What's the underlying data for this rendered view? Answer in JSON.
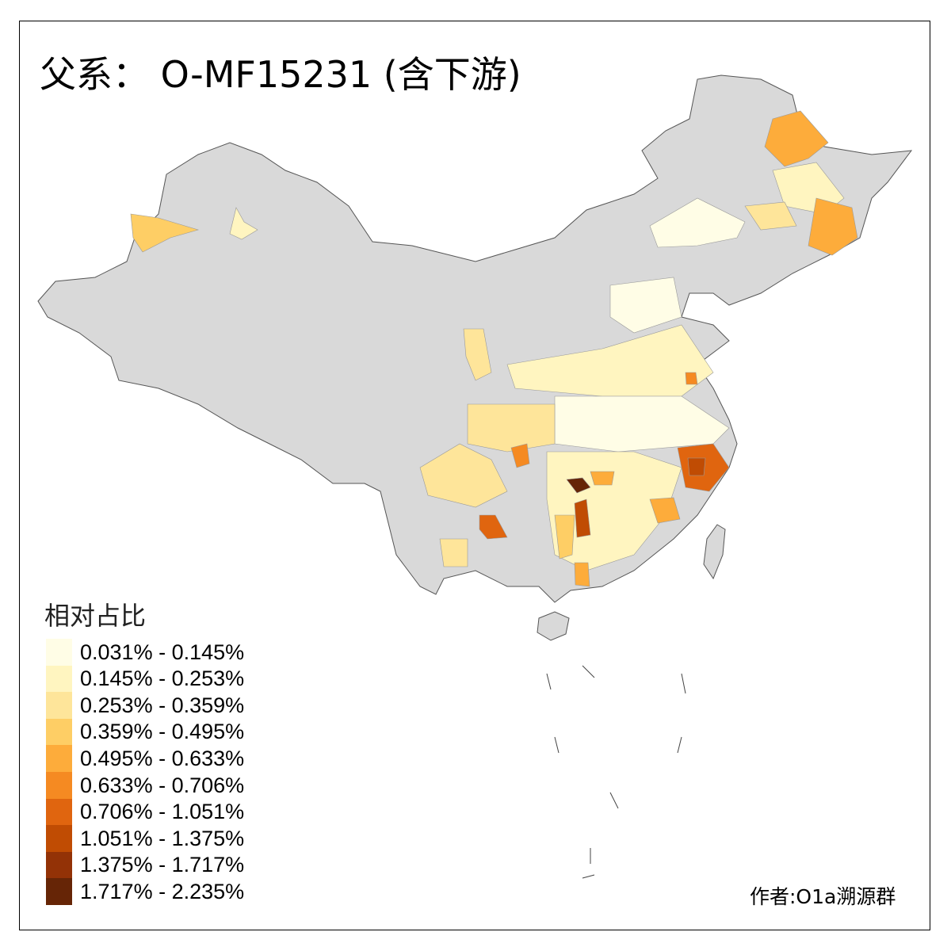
{
  "title": "父系： O-MF15231 (含下游)",
  "legend": {
    "title": "相对占比",
    "items": [
      {
        "label": "0.031% - 0.145%",
        "color": "#FFFDE6"
      },
      {
        "label": "0.145% - 0.253%",
        "color": "#FFF5C0"
      },
      {
        "label": "0.253% - 0.359%",
        "color": "#FEE59A"
      },
      {
        "label": "0.359% - 0.495%",
        "color": "#FECE65"
      },
      {
        "label": "0.495% - 0.633%",
        "color": "#FDAC3B"
      },
      {
        "label": "0.633% - 0.706%",
        "color": "#F58A22"
      },
      {
        "label": "0.706% - 1.051%",
        "color": "#E0650F"
      },
      {
        "label": "1.051% - 1.375%",
        "color": "#C04C03"
      },
      {
        "label": "1.375% - 1.717%",
        "color": "#933206"
      },
      {
        "label": "1.717% - 2.235%",
        "color": "#662506"
      }
    ]
  },
  "map": {
    "base_color": "#D9D9D9",
    "border_color": "#555555"
  },
  "author": "作者:O1a溯源群"
}
